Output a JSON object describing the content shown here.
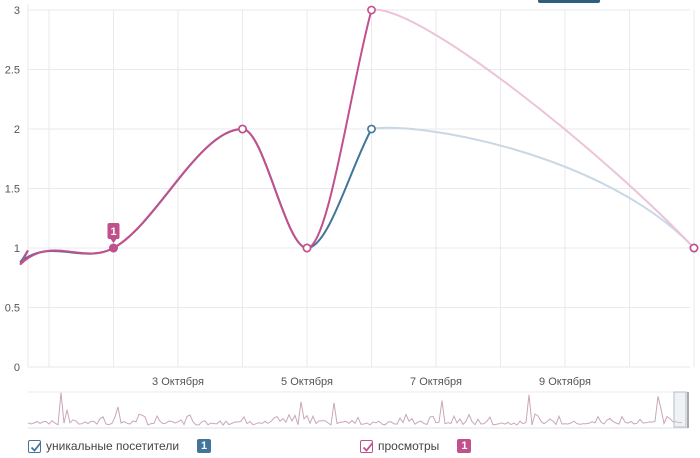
{
  "colors": {
    "unique": "#43759a",
    "views": "#c2508d",
    "unique_future": "#c9d8e4",
    "views_future": "#ecc3d9",
    "grid": "#e8eaee",
    "axis_text": "#555555",
    "nav_line": "#c9a6b8",
    "nav_frame": "#b5bcc4"
  },
  "chart_data": {
    "type": "line",
    "x": [
      "1 Октября",
      "2 Октября",
      "4 Октября",
      "5 Октября",
      "6 Октября",
      "11 Октября"
    ],
    "xticks": [
      "3 Октября",
      "5 Октября",
      "7 Октября",
      "9 Октября"
    ],
    "yticks": [
      "0",
      "0.5",
      "1",
      "1.5",
      "2",
      "2.5",
      "3"
    ],
    "ylim": [
      0,
      3
    ],
    "grid": true,
    "series": [
      {
        "name": "уникальные посетители",
        "values": [
          1,
          1,
          2,
          1,
          2,
          1
        ]
      },
      {
        "name": "просмотры",
        "values": [
          1,
          1,
          2,
          1,
          3,
          1
        ]
      }
    ],
    "annotations": [
      {
        "x": "2 Октября",
        "text": "1"
      }
    ]
  },
  "legend": {
    "unique": {
      "label": "уникальные посетители",
      "badge": "1"
    },
    "views": {
      "label": "просмотры",
      "badge": "1"
    }
  }
}
